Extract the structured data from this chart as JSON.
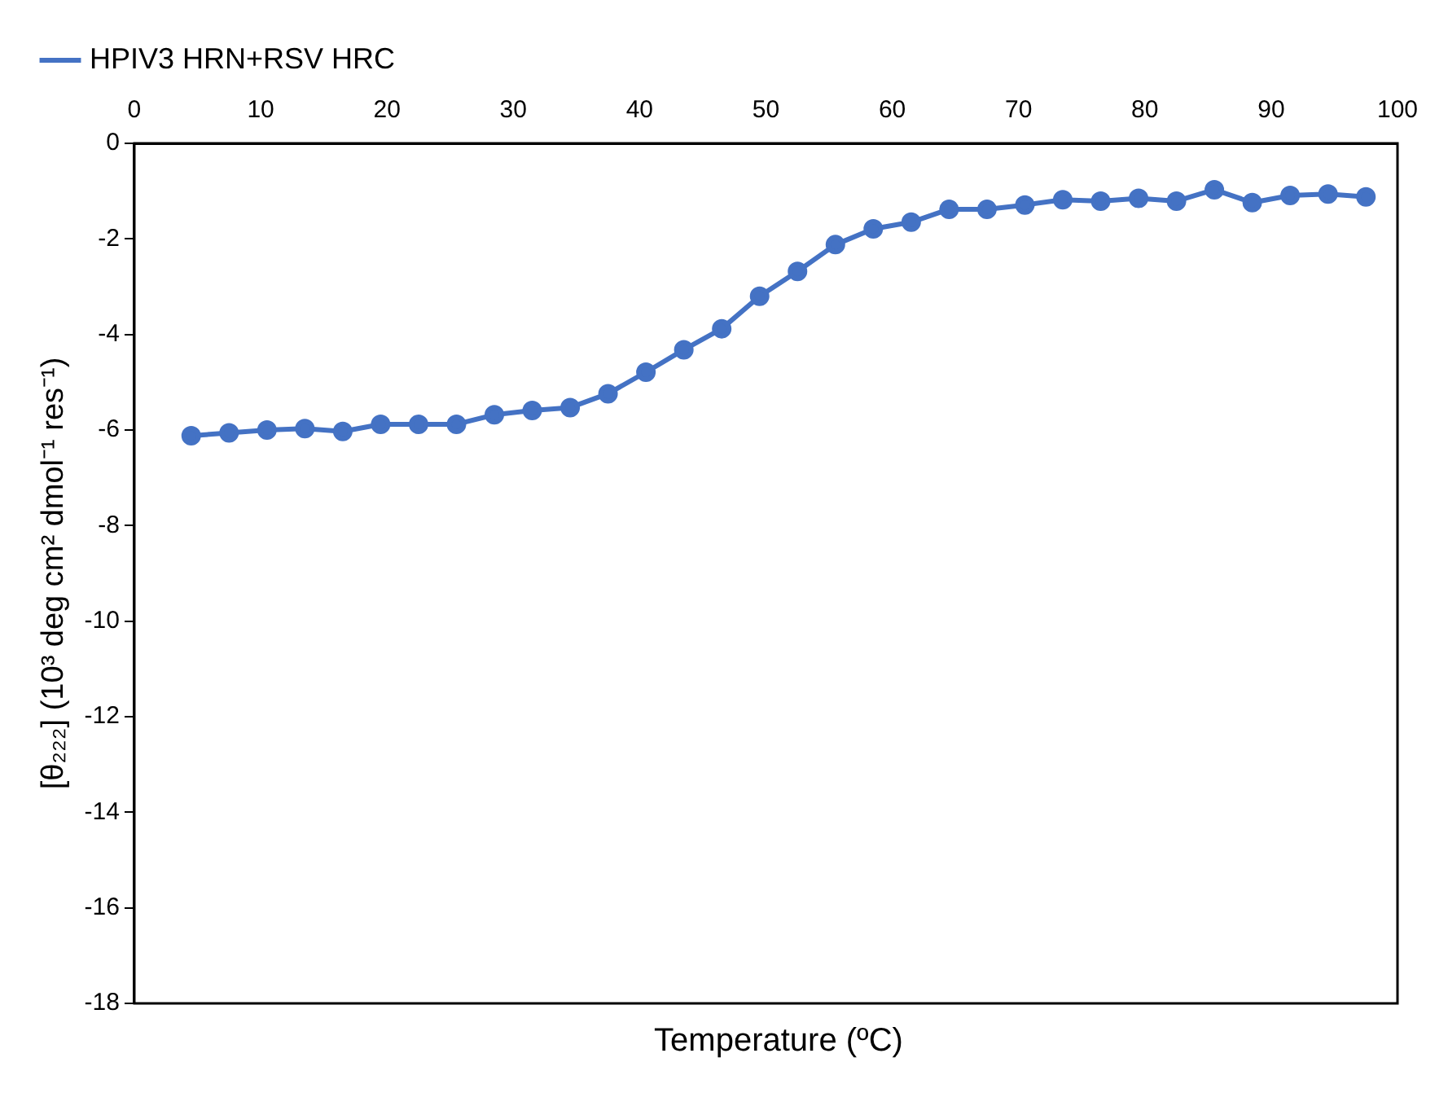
{
  "chart_data": {
    "type": "line",
    "xlabel": "Temperature (ºC)",
    "ylabel": "[θ₂₂₂] (10³ deg cm² dmol⁻¹ res⁻¹)",
    "x": [
      4.5,
      7.5,
      10.5,
      13.5,
      16.5,
      19.5,
      22.5,
      25.5,
      28.5,
      31.5,
      34.5,
      37.5,
      40.5,
      43.5,
      46.5,
      49.5,
      52.5,
      55.5,
      58.5,
      61.5,
      64.5,
      67.5,
      70.5,
      73.5,
      76.5,
      79.5,
      82.5,
      85.5,
      88.5,
      91.5,
      94.5,
      97.5
    ],
    "series": [
      {
        "name": "HPIV3 HRN+RSV HRC",
        "color": "#4472c4",
        "values": [
          -6.12,
          -6.06,
          -6.0,
          -5.97,
          -6.03,
          -5.88,
          -5.88,
          -5.88,
          -5.68,
          -5.59,
          -5.53,
          -5.24,
          -4.79,
          -4.32,
          -3.88,
          -3.2,
          -2.68,
          -2.12,
          -1.79,
          -1.65,
          -1.38,
          -1.38,
          -1.29,
          -1.18,
          -1.21,
          -1.15,
          -1.21,
          -0.97,
          -1.24,
          -1.09,
          -1.06,
          -1.12
        ]
      }
    ],
    "xlim": [
      0,
      100
    ],
    "xticks": [
      0,
      10,
      20,
      30,
      40,
      50,
      60,
      70,
      80,
      90,
      100
    ],
    "ylim": [
      -18,
      0
    ],
    "yticks": [
      -18,
      -16,
      -14,
      -12,
      -10,
      -8,
      -6,
      -4,
      -2,
      0
    ],
    "grid": false,
    "legend": "top left",
    "marker": "circle",
    "line_style": "solid"
  }
}
